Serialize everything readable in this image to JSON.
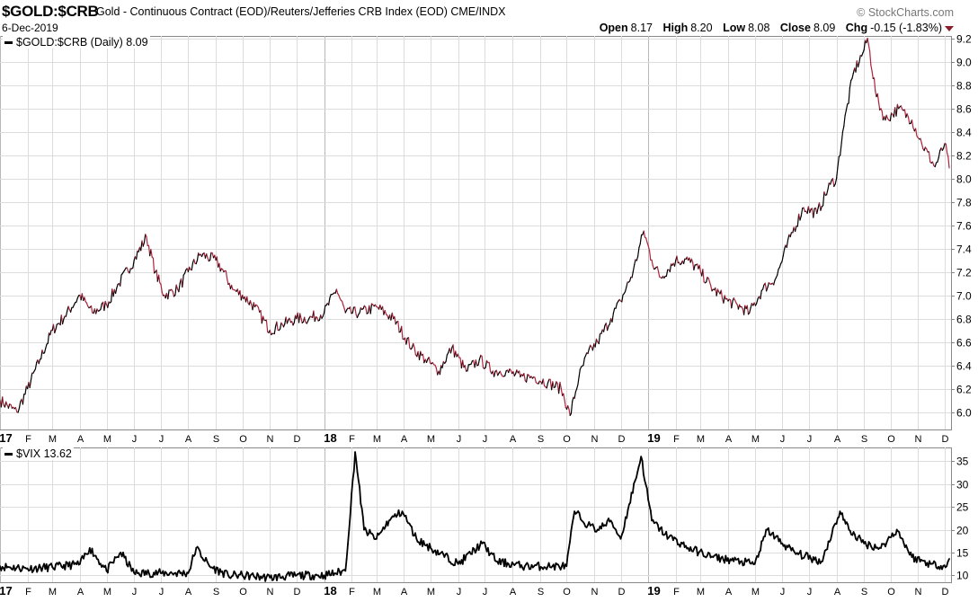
{
  "header": {
    "symbol": "$GOLD:$CRB",
    "description": "Gold - Continuous Contract (EOD)/Reuters/Jefferies CRB Index (EOD)  CME/INDX",
    "date": "6-Dec-2019",
    "brand": "© StockCharts.com",
    "ohlc": {
      "open_label": "Open",
      "open": "8.17",
      "high_label": "High",
      "high": "8.20",
      "low_label": "Low",
      "low": "8.08",
      "close_label": "Close",
      "close": "8.09",
      "chg_label": "Chg",
      "chg": "-0.15 (-1.83%)"
    }
  },
  "colors": {
    "up": "#000000",
    "down": "#b0233c",
    "grid": "#dcdcdc",
    "frame": "#888888",
    "down_arrow": "#8b1d2c"
  },
  "chart_data": [
    {
      "type": "line",
      "legend": "$GOLD:$CRB (Daily) 8.09",
      "ylim": [
        5.85,
        9.22
      ],
      "yticks": [
        "9.2",
        "9.0",
        "8.8",
        "8.6",
        "8.4",
        "8.2",
        "8.0",
        "7.8",
        "7.6",
        "7.4",
        "7.2",
        "7.0",
        "6.8",
        "6.6",
        "6.4",
        "6.2",
        "6.0"
      ],
      "ytick_values": [
        9.2,
        9.0,
        8.8,
        8.6,
        8.4,
        8.2,
        8.0,
        7.8,
        7.6,
        7.4,
        7.2,
        7.0,
        6.8,
        6.6,
        6.4,
        6.2,
        6.0
      ],
      "coloring": "black when rising, red when falling",
      "x": [
        "2017-01-01",
        "2017-01-20",
        "2017-02-01",
        "2017-02-15",
        "2017-03-01",
        "2017-03-15",
        "2017-04-01",
        "2017-04-15",
        "2017-05-01",
        "2017-05-15",
        "2017-06-01",
        "2017-06-15",
        "2017-06-25",
        "2017-07-05",
        "2017-07-20",
        "2017-08-01",
        "2017-08-15",
        "2017-09-01",
        "2017-09-10",
        "2017-09-20",
        "2017-10-01",
        "2017-10-15",
        "2017-11-01",
        "2017-11-15",
        "2017-12-01",
        "2017-12-15",
        "2018-01-01",
        "2018-01-15",
        "2018-01-25",
        "2018-02-10",
        "2018-03-01",
        "2018-03-20",
        "2018-04-10",
        "2018-04-25",
        "2018-05-10",
        "2018-05-25",
        "2018-06-10",
        "2018-06-25",
        "2018-07-10",
        "2018-07-25",
        "2018-08-10",
        "2018-08-25",
        "2018-09-10",
        "2018-09-25",
        "2018-10-05",
        "2018-10-15",
        "2018-10-25",
        "2018-11-05",
        "2018-11-20",
        "2018-12-01",
        "2018-12-15",
        "2018-12-27",
        "2019-01-05",
        "2019-01-15",
        "2019-02-01",
        "2019-02-15",
        "2019-03-01",
        "2019-03-15",
        "2019-04-01",
        "2019-04-15",
        "2019-04-25",
        "2019-05-10",
        "2019-05-25",
        "2019-06-10",
        "2019-06-25",
        "2019-07-10",
        "2019-07-25",
        "2019-08-01",
        "2019-08-08",
        "2019-08-20",
        "2019-09-01",
        "2019-09-05",
        "2019-09-15",
        "2019-09-25",
        "2019-10-10",
        "2019-10-25",
        "2019-11-05",
        "2019-11-20",
        "2019-12-01",
        "2019-12-06"
      ],
      "values": [
        6.1,
        6.0,
        6.2,
        6.45,
        6.7,
        6.82,
        7.0,
        6.85,
        6.92,
        7.1,
        7.3,
        7.5,
        7.2,
        7.0,
        7.05,
        7.2,
        7.35,
        7.3,
        7.2,
        7.05,
        7.0,
        6.9,
        6.7,
        6.75,
        6.8,
        6.8,
        6.85,
        7.05,
        6.85,
        6.85,
        6.9,
        6.8,
        6.55,
        6.45,
        6.35,
        6.55,
        6.35,
        6.45,
        6.35,
        6.35,
        6.3,
        6.3,
        6.25,
        6.2,
        5.97,
        6.3,
        6.5,
        6.6,
        6.8,
        6.95,
        7.2,
        7.55,
        7.3,
        7.15,
        7.3,
        7.3,
        7.2,
        7.05,
        6.95,
        6.9,
        6.85,
        7.05,
        7.15,
        7.5,
        7.75,
        7.7,
        7.95,
        8.0,
        8.4,
        8.9,
        9.1,
        9.2,
        8.7,
        8.5,
        8.6,
        8.5,
        8.3,
        8.1,
        8.3,
        8.09
      ]
    },
    {
      "type": "line",
      "legend": "$VIX 13.62",
      "ylim": [
        8.5,
        38
      ],
      "yticks": [
        "35",
        "30",
        "25",
        "20",
        "15",
        "10"
      ],
      "ytick_values": [
        35,
        30,
        25,
        20,
        15,
        10
      ],
      "x": [
        "2017-01-01",
        "2017-02-01",
        "2017-03-01",
        "2017-04-01",
        "2017-04-12",
        "2017-05-01",
        "2017-05-17",
        "2017-06-01",
        "2017-07-01",
        "2017-08-01",
        "2017-08-10",
        "2017-08-25",
        "2017-09-15",
        "2017-10-01",
        "2017-11-01",
        "2017-12-01",
        "2018-01-01",
        "2018-01-25",
        "2018-02-05",
        "2018-02-15",
        "2018-03-01",
        "2018-03-15",
        "2018-03-30",
        "2018-04-15",
        "2018-05-01",
        "2018-06-01",
        "2018-06-28",
        "2018-07-15",
        "2018-08-15",
        "2018-09-15",
        "2018-10-01",
        "2018-10-10",
        "2018-10-25",
        "2018-11-05",
        "2018-11-20",
        "2018-12-01",
        "2018-12-24",
        "2019-01-05",
        "2019-01-20",
        "2019-02-15",
        "2019-03-15",
        "2019-04-15",
        "2019-05-01",
        "2019-05-15",
        "2019-06-01",
        "2019-06-15",
        "2019-07-15",
        "2019-08-05",
        "2019-08-15",
        "2019-09-01",
        "2019-09-20",
        "2019-10-08",
        "2019-10-25",
        "2019-11-15",
        "2019-12-03",
        "2019-12-06"
      ],
      "values": [
        12,
        11.5,
        11.8,
        12.5,
        16,
        11,
        15,
        10.5,
        10.5,
        10.5,
        16,
        12,
        10,
        10,
        9.5,
        10,
        10,
        11,
        37,
        20,
        18,
        22,
        24,
        18,
        16,
        12.5,
        17,
        13,
        12,
        12,
        12,
        24,
        21,
        20,
        22,
        18,
        36,
        22,
        19,
        16,
        14,
        13,
        12.5,
        20,
        17,
        15,
        13,
        24,
        20,
        17,
        16,
        20,
        14,
        12.5,
        12,
        13.62
      ]
    }
  ],
  "x_axis": {
    "labels": [
      "17",
      "F",
      "M",
      "A",
      "M",
      "J",
      "J",
      "A",
      "S",
      "O",
      "N",
      "D",
      "18",
      "F",
      "M",
      "A",
      "M",
      "J",
      "J",
      "A",
      "S",
      "O",
      "N",
      "D",
      "19",
      "F",
      "M",
      "A",
      "M",
      "J",
      "J",
      "A",
      "S",
      "O",
      "N",
      "D"
    ],
    "year_labels": [
      "17",
      "18",
      "19"
    ]
  }
}
